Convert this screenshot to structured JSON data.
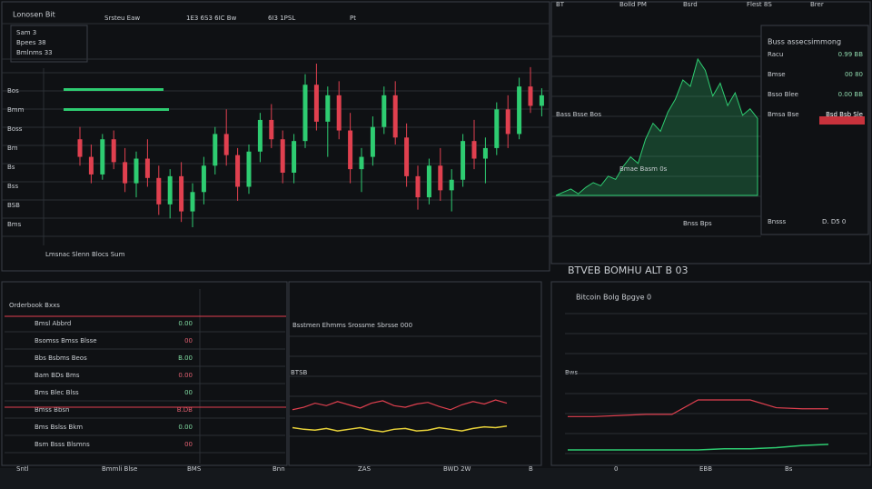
{
  "top_bar": {
    "title": "Lonosen Bit",
    "tabs": [
      "Srsteu Eaw",
      "1E3 6S3 6IC Bw",
      "6I3 1PSL",
      "Pt"
    ],
    "right": [
      "BT",
      "Bolld PM",
      "Bsrd",
      "Flest 8S",
      "Brer"
    ]
  },
  "info_box": {
    "rows": [
      "Sam 3",
      "Bpees 38",
      "Bmlnms 33"
    ]
  },
  "main_chart": {
    "axis_labels": [
      "Bos",
      "Bmm",
      "Boss",
      "Bm",
      "Bs",
      "Bss",
      "BSB",
      "Bms"
    ],
    "footer": "Lmsnac Slenn Blocs Sum",
    "candles": [
      [
        55,
        62,
        40,
        45
      ],
      [
        45,
        52,
        30,
        35
      ],
      [
        35,
        58,
        32,
        55
      ],
      [
        55,
        60,
        38,
        42
      ],
      [
        42,
        50,
        25,
        30
      ],
      [
        30,
        48,
        22,
        44
      ],
      [
        44,
        55,
        28,
        33
      ],
      [
        33,
        40,
        12,
        18
      ],
      [
        18,
        38,
        10,
        34
      ],
      [
        34,
        42,
        8,
        14
      ],
      [
        14,
        30,
        5,
        25
      ],
      [
        25,
        45,
        18,
        40
      ],
      [
        40,
        62,
        35,
        58
      ],
      [
        58,
        72,
        40,
        46
      ],
      [
        46,
        50,
        20,
        28
      ],
      [
        28,
        52,
        24,
        48
      ],
      [
        48,
        70,
        42,
        66
      ],
      [
        66,
        75,
        50,
        55
      ],
      [
        55,
        60,
        30,
        36
      ],
      [
        36,
        58,
        30,
        54
      ],
      [
        54,
        92,
        50,
        86
      ],
      [
        86,
        98,
        60,
        65
      ],
      [
        65,
        85,
        45,
        80
      ],
      [
        80,
        88,
        55,
        60
      ],
      [
        60,
        70,
        30,
        38
      ],
      [
        38,
        50,
        25,
        45
      ],
      [
        45,
        68,
        40,
        62
      ],
      [
        62,
        85,
        58,
        80
      ],
      [
        80,
        88,
        52,
        56
      ],
      [
        56,
        64,
        28,
        34
      ],
      [
        34,
        40,
        15,
        22
      ],
      [
        22,
        44,
        18,
        40
      ],
      [
        40,
        50,
        20,
        26
      ],
      [
        26,
        38,
        14,
        32
      ],
      [
        32,
        58,
        28,
        54
      ],
      [
        54,
        66,
        38,
        44
      ],
      [
        44,
        56,
        30,
        50
      ],
      [
        50,
        76,
        46,
        72
      ],
      [
        72,
        80,
        50,
        58
      ],
      [
        58,
        90,
        55,
        85
      ],
      [
        85,
        96,
        70,
        74
      ],
      [
        74,
        84,
        68,
        80
      ]
    ]
  },
  "side_panel": {
    "title": "Buss assecsimmong",
    "rows": [
      [
        "Racu",
        "0.99 BB"
      ],
      [
        "Bmse",
        "00 80"
      ],
      [
        "Bsso Blee",
        "0.00 BB"
      ],
      [
        "Bmsa Bse",
        "Bsd Bsb Sle"
      ]
    ],
    "footer": [
      "Bnsss",
      "D. D5 0"
    ]
  },
  "depth_chart": {
    "caption": "BTVEB BOMHU ALT B 03",
    "labels": [
      "Bass Bsse Bos",
      "Bmae Basm 0s",
      "Bnss Bps"
    ],
    "values": [
      10,
      12,
      14,
      11,
      15,
      18,
      16,
      22,
      20,
      28,
      34,
      30,
      45,
      55,
      50,
      62,
      70,
      82,
      78,
      95,
      88,
      72,
      80,
      66,
      74,
      60,
      64,
      58
    ]
  },
  "order_table": {
    "title": "Orderbook Bxxs",
    "rows": [
      [
        "Bmsl Abbrd",
        "0.00"
      ],
      [
        "Bsomss Bmss Blsse",
        "00"
      ],
      [
        "Bbs Bsbms Beos",
        "B.00"
      ],
      [
        "Bam BDs Bms",
        "0.00"
      ],
      [
        "Bms Blec Blss",
        "00"
      ],
      [
        "Bmss Bbsn",
        "B.DB"
      ],
      [
        "Bms Bslss Bkm",
        "0.00"
      ],
      [
        "Bsm Bsss Blsmns",
        "00"
      ]
    ]
  },
  "price_chart": {
    "title": "Bsstmen Ehmms Srossme Sbrsse 000",
    "label": "BTSB",
    "red": [
      52,
      55,
      60,
      57,
      62,
      58,
      54,
      60,
      63,
      57,
      55,
      59,
      61,
      56,
      52,
      58,
      62,
      59,
      64,
      60
    ],
    "yellow": [
      30,
      28,
      27,
      29,
      26,
      28,
      30,
      27,
      25,
      28,
      29,
      26,
      27,
      30,
      28,
      26,
      29,
      31,
      30,
      32
    ]
  },
  "volume_chart": {
    "title": "Bitcoin Bolg Bpgye 0",
    "label": "Bws",
    "red": [
      40,
      40,
      41,
      42,
      42,
      55,
      55,
      55,
      48,
      47,
      47
    ],
    "green": [
      10,
      10,
      10,
      10,
      10,
      10,
      11,
      11,
      12,
      14,
      15
    ]
  },
  "status_bar": {
    "items": [
      "Sntl",
      "Bmmli Blse",
      "BMS",
      "Bnn",
      "ZAS",
      "BWD 2W",
      "B",
      "0",
      "EBB",
      "Bs"
    ]
  }
}
